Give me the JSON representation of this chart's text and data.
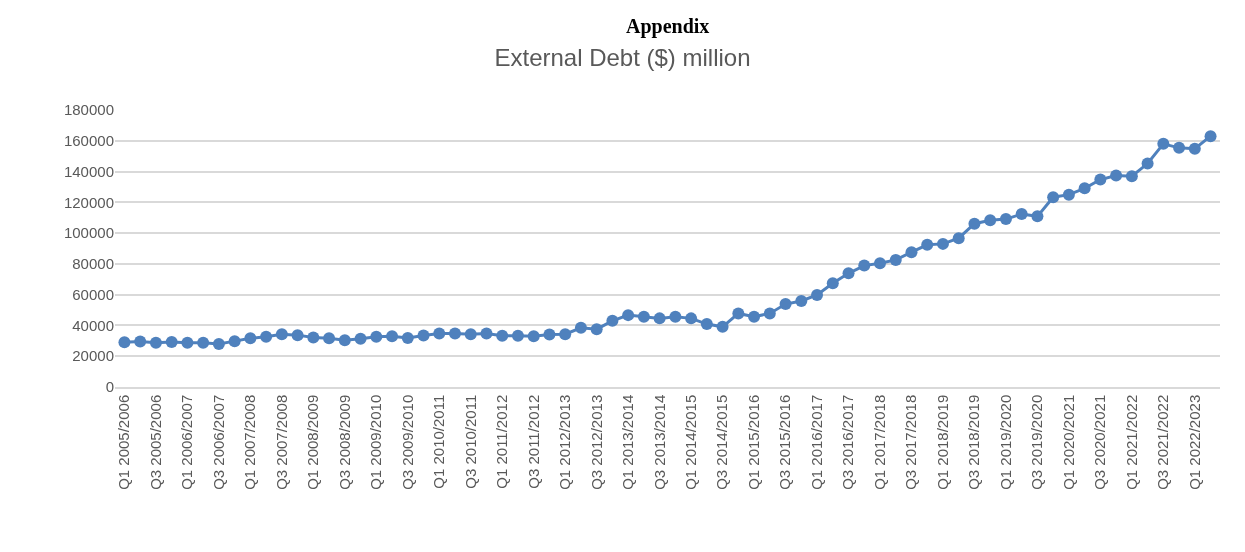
{
  "chart_data": {
    "type": "line",
    "title": "External Debt ($) million",
    "annotations": [
      "Appendix"
    ],
    "categories": [
      "Q1 2005/2006",
      null,
      "Q3 2005/2006",
      null,
      "Q1 2006/2007",
      null,
      "Q3 2006/2007",
      null,
      "Q1 2007/2008",
      null,
      "Q3 2007/2008",
      null,
      "Q1 2008/2009",
      null,
      "Q3 2008/2009",
      null,
      "Q1 2009/2010",
      null,
      "Q3 2009/2010",
      null,
      "Q1 2010/2011",
      null,
      "Q3 2010/2011",
      null,
      "Q1 2011/2012",
      null,
      "Q3 2011/2012",
      null,
      "Q1 2012/2013",
      null,
      "Q3 2012/2013",
      null,
      "Q1 2013/2014",
      null,
      "Q3 2013/2014",
      null,
      "Q1 2014/2015",
      null,
      "Q3 2014/2015",
      null,
      "Q1 2015/2016",
      null,
      "Q3 2015/2016",
      null,
      "Q1 2016/2017",
      null,
      "Q3 2016/2017",
      null,
      "Q1 2017/2018",
      null,
      "Q3 2017/2018",
      null,
      "Q1 2018/2019",
      null,
      "Q3 2018/2019",
      null,
      "Q1 2019/2020",
      null,
      "Q3 2019/2020",
      null,
      "Q1 2020/2021",
      null,
      "Q3 2020/2021",
      null,
      "Q1 2021/2022",
      null,
      "Q3 2021/2022",
      null,
      "Q1 2022/2023",
      null
    ],
    "series": [
      {
        "color": "#4f81bd",
        "values": [
          29100,
          29600,
          28700,
          29300,
          28700,
          28700,
          28000,
          29800,
          31700,
          32600,
          34300,
          33700,
          32200,
          31700,
          30400,
          31300,
          32600,
          33000,
          31900,
          33500,
          34800,
          34800,
          34300,
          34800,
          33300,
          33300,
          33000,
          34100,
          34300,
          38500,
          37600,
          43000,
          46700,
          45700,
          44600,
          45700,
          44600,
          40900,
          39100,
          47800,
          45700,
          47800,
          53900,
          55900,
          59800,
          67400,
          73900,
          78900,
          80400,
          82600,
          87600,
          92400,
          93000,
          96700,
          106100,
          108300,
          109100,
          112400,
          110900,
          123300,
          125000,
          129100,
          134800,
          137400,
          137000,
          145200,
          158000,
          155400,
          154800,
          163000
        ]
      }
    ],
    "ylim": [
      0,
      180000
    ],
    "yticks": [
      0,
      20000,
      40000,
      60000,
      80000,
      100000,
      120000,
      140000,
      160000,
      180000
    ],
    "grid": "y",
    "marker": "circle",
    "line_style": "solid"
  }
}
